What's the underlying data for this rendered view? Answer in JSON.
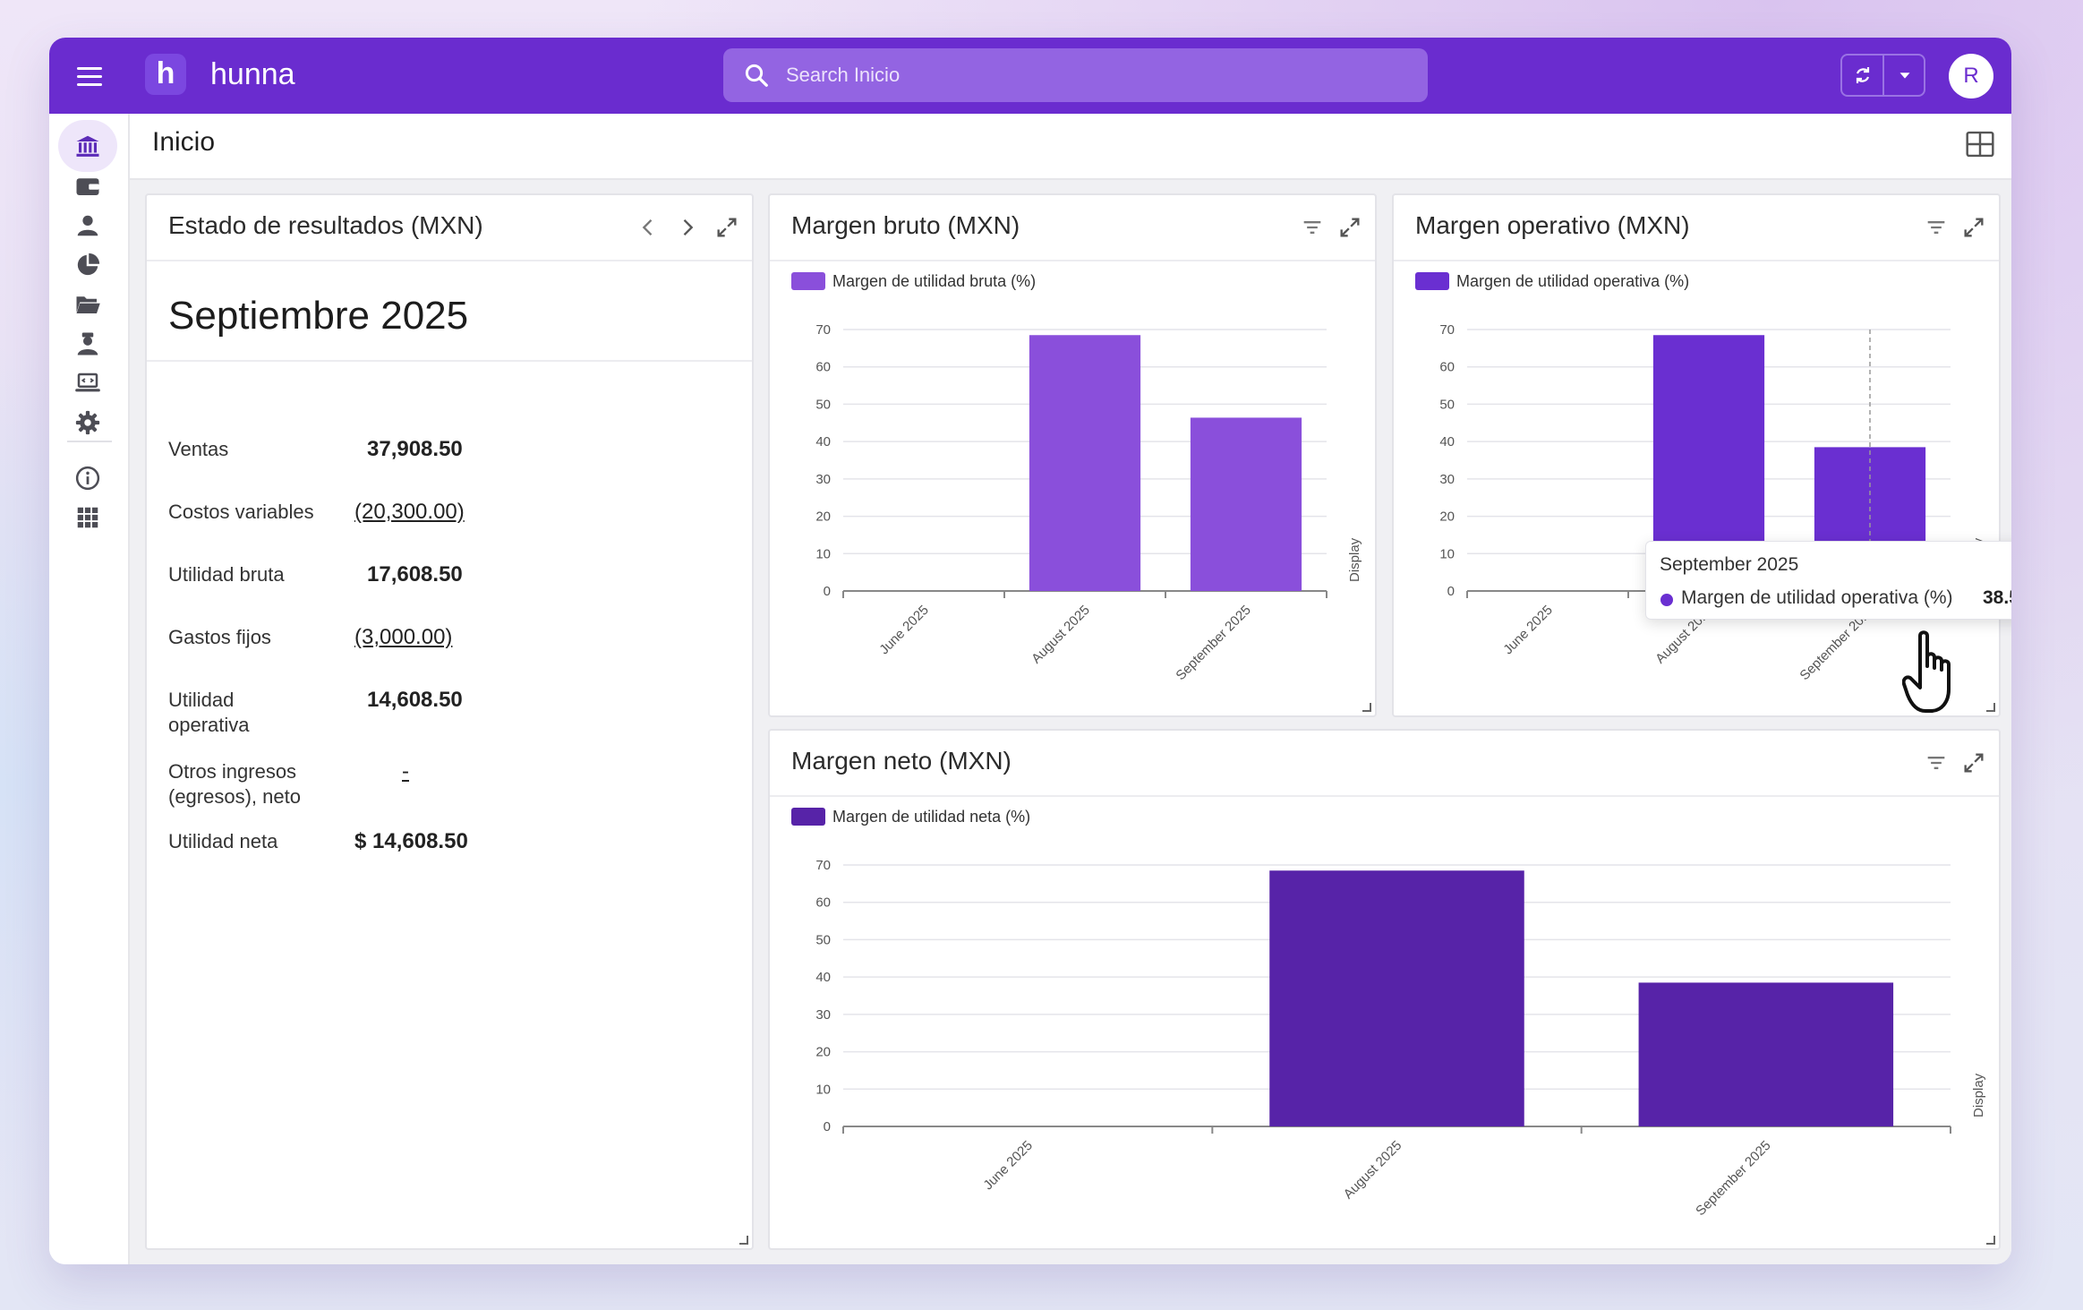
{
  "app": {
    "name": "hunna",
    "logo_letter": "h",
    "accent": "#6a2ccf",
    "user_initial": "R"
  },
  "search": {
    "placeholder": "Search Inicio"
  },
  "page": {
    "title": "Inicio"
  },
  "sidebar": {
    "items": [
      {
        "icon": "bank-icon",
        "active": true
      },
      {
        "icon": "wallet-icon",
        "active": false
      },
      {
        "icon": "person-icon",
        "active": false
      },
      {
        "icon": "pie-chart-icon",
        "active": false
      },
      {
        "icon": "folder-icon",
        "active": false
      },
      {
        "icon": "employee-icon",
        "active": false
      },
      {
        "icon": "laptop-code-icon",
        "active": false
      },
      {
        "icon": "gear-icon",
        "active": false
      },
      {
        "icon": "info-icon",
        "active": false
      },
      {
        "icon": "apps-grid-icon",
        "active": false
      }
    ]
  },
  "statement": {
    "title": "Estado de resultados (MXN)",
    "period": "Septiembre 2025",
    "rows": [
      {
        "label": "Ventas",
        "value": "37,908.50",
        "link": false
      },
      {
        "label": "Costos variables",
        "value": "(20,300.00)",
        "link": true
      },
      {
        "label": "Utilidad bruta",
        "value": "17,608.50",
        "link": false
      },
      {
        "label": "Gastos fijos",
        "value": "(3,000.00)",
        "link": true
      },
      {
        "label": "Utilidad operativa",
        "value": "14,608.50",
        "link": false
      },
      {
        "label": "Otros ingresos (egresos), neto",
        "value": "-",
        "link": true
      },
      {
        "label": "Utilidad neta",
        "value": "$ 14,608.50",
        "link": false
      }
    ]
  },
  "cards": {
    "bruto": {
      "title": "Margen bruto (MXN)"
    },
    "operativo": {
      "title": "Margen operativo (MXN)"
    },
    "neto": {
      "title": "Margen neto (MXN)"
    }
  },
  "chart_data": [
    {
      "type": "bar",
      "title": "Margen bruto (MXN)",
      "categories": [
        "June 2025",
        "August 2025",
        "September 2025"
      ],
      "series": [
        {
          "name": "Margen de utilidad bruta (%)",
          "values": [
            0,
            68.5,
            46.4
          ],
          "color": "#8a4fdb"
        }
      ],
      "ylim": [
        0,
        70
      ],
      "yticks": [
        0,
        10,
        20,
        30,
        40,
        50,
        60,
        70
      ],
      "right_label": "Display",
      "grid": true,
      "legend": "top-left"
    },
    {
      "type": "bar",
      "title": "Margen operativo (MXN)",
      "categories": [
        "June 2025",
        "August 2025",
        "September 2025"
      ],
      "series": [
        {
          "name": "Margen de utilidad operativa (%)",
          "values": [
            0,
            68.5,
            38.5
          ],
          "color": "#6a2fd1"
        }
      ],
      "ylim": [
        0,
        70
      ],
      "yticks": [
        0,
        10,
        20,
        30,
        40,
        50,
        60,
        70
      ],
      "right_label": "Display",
      "grid": true,
      "legend": "top-left",
      "tooltip": {
        "title": "September 2025",
        "series": "Margen de utilidad operativa (%)",
        "value": "38.5"
      }
    },
    {
      "type": "bar",
      "title": "Margen neto (MXN)",
      "categories": [
        "June 2025",
        "August 2025",
        "September 2025"
      ],
      "series": [
        {
          "name": "Margen de utilidad neta (%)",
          "values": [
            0,
            68.5,
            38.5
          ],
          "color": "#5723a8"
        }
      ],
      "ylim": [
        0,
        70
      ],
      "yticks": [
        0,
        10,
        20,
        30,
        40,
        50,
        60,
        70
      ],
      "right_label": "Display",
      "grid": true,
      "legend": "top-left"
    }
  ]
}
